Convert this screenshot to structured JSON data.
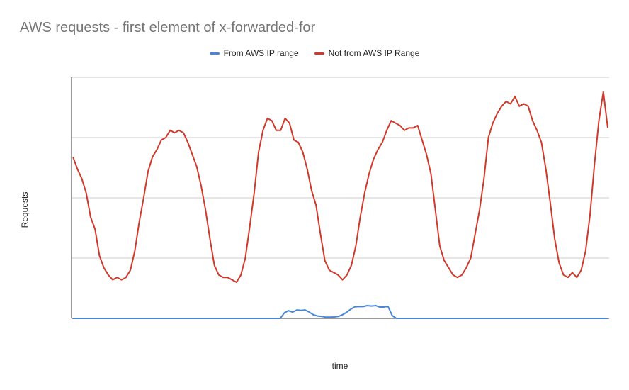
{
  "chart_data": {
    "type": "line",
    "title": "AWS requests - first element of x-forwarded-for",
    "xlabel": "time",
    "ylabel": "Requests",
    "ylim": [
      0,
      100
    ],
    "grid": true,
    "legend": "top",
    "series": [
      {
        "name": "From AWS IP range",
        "color": "#4a86d6",
        "values": [
          0,
          0,
          0,
          0,
          0,
          0,
          0,
          0,
          0,
          0,
          0,
          0,
          0,
          0,
          0,
          0,
          0,
          0,
          0,
          0,
          0,
          0,
          0,
          0,
          0,
          0,
          0,
          0,
          0,
          0,
          0,
          0,
          0,
          0,
          0,
          0,
          0,
          0,
          0,
          0,
          0,
          0,
          0,
          0,
          0,
          0,
          0,
          0,
          0,
          0,
          0,
          2.3,
          3.2,
          2.6,
          3.5,
          3.3,
          3.5,
          2.6,
          1.5,
          1.0,
          0.8,
          0.5,
          0.5,
          0.6,
          0.8,
          1.5,
          2.5,
          3.8,
          4.8,
          4.9,
          4.9,
          5.3,
          5.1,
          5.3,
          4.7,
          4.7,
          5.0,
          1.2,
          0,
          0,
          0,
          0,
          0,
          0,
          0,
          0,
          0,
          0,
          0,
          0,
          0,
          0,
          0,
          0,
          0,
          0,
          0,
          0,
          0,
          0,
          0,
          0,
          0,
          0,
          0,
          0,
          0,
          0,
          0,
          0,
          0,
          0,
          0,
          0,
          0,
          0,
          0,
          0,
          0,
          0,
          0,
          0,
          0,
          0,
          0,
          0,
          0,
          0,
          0,
          0
        ]
      },
      {
        "name": "Not from AWS IP Range",
        "color": "#d0392b",
        "values": [
          67,
          62,
          58,
          52,
          42,
          37,
          26,
          21,
          18,
          16,
          17,
          16,
          17,
          20,
          28,
          40,
          50,
          61,
          67,
          70,
          74,
          75,
          78,
          77,
          78,
          77,
          73,
          68,
          63,
          55,
          45,
          33,
          22,
          18,
          17,
          17,
          16,
          15,
          18,
          25,
          38,
          52,
          69,
          78,
          83,
          82,
          78,
          78,
          83,
          81,
          74,
          73,
          69,
          62,
          53,
          47,
          35,
          24,
          20,
          19,
          18,
          16,
          18,
          22,
          30,
          42,
          52,
          60,
          66,
          70,
          73,
          78,
          82,
          81,
          80,
          78,
          79,
          79,
          80,
          74,
          68,
          60,
          45,
          30,
          24,
          21,
          18,
          17,
          18,
          21,
          25,
          35,
          45,
          58,
          75,
          81,
          85,
          88,
          90,
          89,
          92,
          88,
          89,
          88,
          82,
          78,
          73,
          62,
          48,
          33,
          23,
          18,
          17,
          19,
          17,
          20,
          28,
          43,
          64,
          82,
          94,
          79
        ]
      }
    ]
  }
}
